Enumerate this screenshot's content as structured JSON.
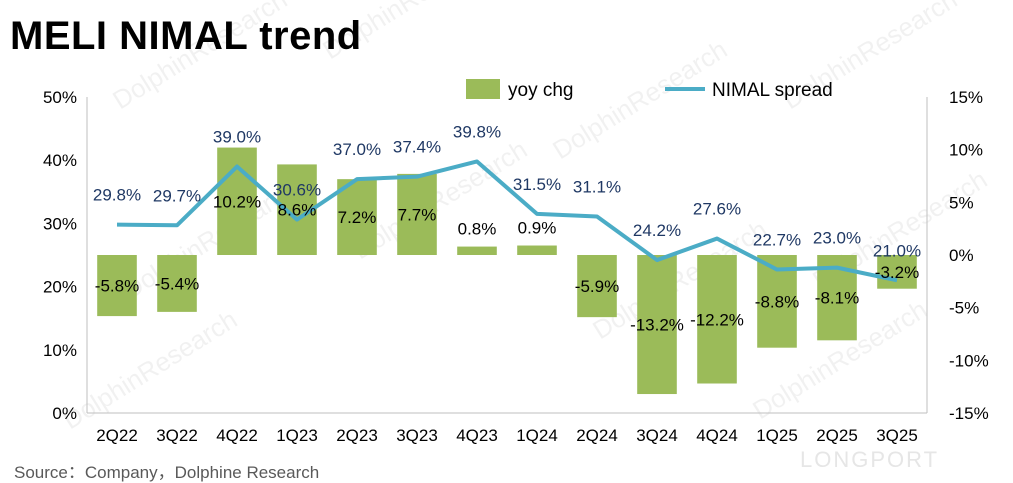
{
  "header": {
    "title": "MELI NIMAL trend"
  },
  "footer": {
    "source": "Source：Company，Dolphine Research",
    "brand": "LONGPORT"
  },
  "watermark": "DolphinResearch",
  "chart_data": {
    "type": "bar+line",
    "title": "MELI NIMAL trend",
    "categories": [
      "2Q22",
      "3Q22",
      "4Q22",
      "1Q23",
      "2Q23",
      "3Q23",
      "4Q23",
      "1Q24",
      "2Q24",
      "3Q24",
      "4Q24",
      "1Q25",
      "2Q25",
      "3Q25"
    ],
    "series": [
      {
        "name": "yoy chg",
        "type": "bar",
        "axis": "right",
        "color": "#9bbb59",
        "values": [
          -5.8,
          -5.4,
          10.2,
          8.6,
          7.2,
          7.7,
          0.8,
          0.9,
          -5.9,
          -13.2,
          -12.2,
          -8.8,
          -8.1,
          -3.2
        ],
        "labels": [
          "-5.8%",
          "-5.4%",
          "10.2%",
          "8.6%",
          "7.2%",
          "7.7%",
          "0.8%",
          "0.9%",
          "-5.9%",
          "-13.2%",
          "-12.2%",
          "-8.8%",
          "-8.1%",
          "-3.2%"
        ]
      },
      {
        "name": "NIMAL spread",
        "type": "line",
        "axis": "left",
        "color": "#4bacc6",
        "values": [
          29.8,
          29.7,
          39.0,
          30.6,
          37.0,
          37.4,
          39.8,
          31.5,
          31.1,
          24.2,
          27.6,
          22.7,
          23.0,
          21.0
        ],
        "labels": [
          "29.8%",
          "29.7%",
          "39.0%",
          "30.6%",
          "37.0%",
          "37.4%",
          "39.8%",
          "31.5%",
          "31.1%",
          "24.2%",
          "27.6%",
          "22.7%",
          "23.0%",
          "21.0%"
        ]
      }
    ],
    "y_left": {
      "ylim": [
        0,
        50
      ],
      "ticks": [
        "0%",
        "10%",
        "20%",
        "30%",
        "40%",
        "50%"
      ]
    },
    "y_right": {
      "ylim": [
        -15,
        15
      ],
      "ticks": [
        "-15%",
        "-10%",
        "-5%",
        "0%",
        "5%",
        "10%",
        "15%"
      ]
    },
    "legend_position": "top-center",
    "grid": false
  }
}
